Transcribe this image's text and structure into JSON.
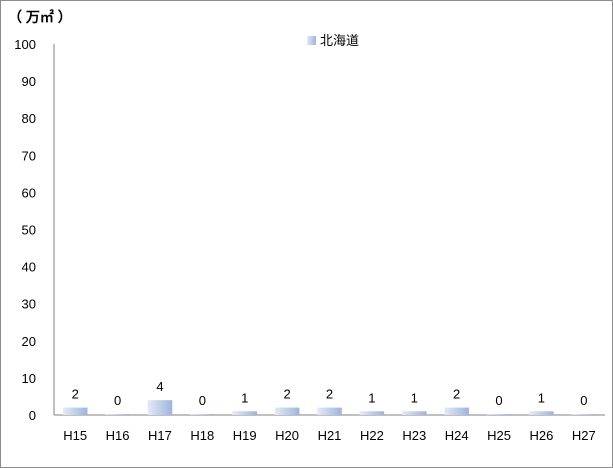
{
  "chart_data": {
    "type": "bar",
    "unit_label": "（ 万㎡ ）",
    "categories": [
      "H15",
      "H16",
      "H17",
      "H18",
      "H19",
      "H20",
      "H21",
      "H22",
      "H23",
      "H24",
      "H25",
      "H26",
      "H27"
    ],
    "series": [
      {
        "name": "北海道",
        "values": [
          2,
          0,
          4,
          0,
          1,
          2,
          2,
          1,
          1,
          2,
          0,
          1,
          0
        ]
      }
    ],
    "ylim": [
      0,
      100
    ],
    "yticks": [
      0,
      10,
      20,
      30,
      40,
      50,
      60,
      70,
      80,
      90,
      100
    ],
    "grid": false,
    "legend": "top",
    "colors": {
      "bar_light": "#dde6f4",
      "bar_dark": "#9fb3dc",
      "axis": "#808080"
    }
  }
}
